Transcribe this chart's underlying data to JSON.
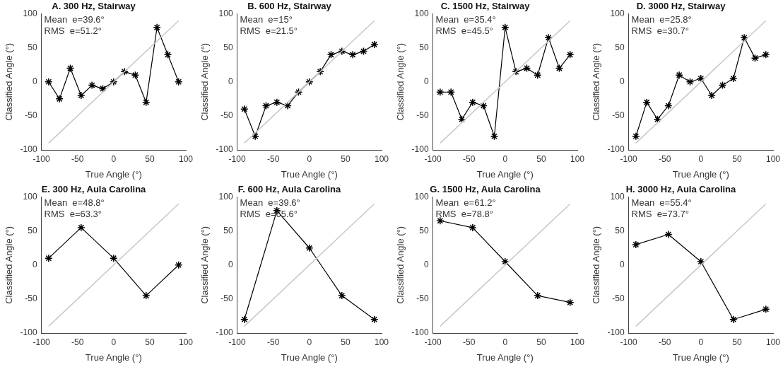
{
  "chart_data": [
    {
      "type": "line",
      "title": "A. 300 Hz, Stairway",
      "xlabel": "True Angle (°)",
      "ylabel": "Classified Angle (°)",
      "annotations": [
        "Mean  e=39.6°",
        "RMS  e=51.2°"
      ],
      "xlim": [
        -100,
        100
      ],
      "ylim": [
        -100,
        100
      ],
      "xticks": [
        -100,
        -50,
        0,
        50,
        100
      ],
      "yticks": [
        -100,
        -50,
        0,
        50,
        100
      ],
      "series": [
        {
          "x": [
            -90,
            90
          ],
          "values": [
            -90,
            90
          ],
          "color": "#c8c8c8",
          "marker": "none"
        },
        {
          "x": [
            -90,
            -75,
            -60,
            -45,
            -30,
            -15,
            0,
            15,
            30,
            45,
            60,
            75,
            90
          ],
          "values": [
            0,
            -25,
            20,
            -20,
            -5,
            -10,
            0,
            15,
            10,
            -30,
            80,
            40,
            0
          ],
          "color": "#000000",
          "marker": "cross"
        }
      ]
    },
    {
      "type": "line",
      "title": "B. 600 Hz, Stairway",
      "xlabel": "True Angle (°)",
      "ylabel": "Classified Angle (°)",
      "annotations": [
        "Mean  e=15°",
        "RMS  e=21.5°"
      ],
      "xlim": [
        -100,
        100
      ],
      "ylim": [
        -100,
        100
      ],
      "xticks": [
        -100,
        -50,
        0,
        50,
        100
      ],
      "yticks": [
        -100,
        -50,
        0,
        50,
        100
      ],
      "series": [
        {
          "x": [
            -90,
            90
          ],
          "values": [
            -90,
            90
          ],
          "color": "#c8c8c8",
          "marker": "none"
        },
        {
          "x": [
            -90,
            -75,
            -60,
            -45,
            -30,
            -15,
            0,
            15,
            30,
            45,
            60,
            75,
            90
          ],
          "values": [
            -40,
            -80,
            -35,
            -30,
            -35,
            -15,
            0,
            15,
            40,
            45,
            40,
            45,
            55
          ],
          "color": "#000000",
          "marker": "cross"
        }
      ]
    },
    {
      "type": "line",
      "title": "C. 1500 Hz, Stairway",
      "xlabel": "True Angle (°)",
      "ylabel": "Classified Angle (°)",
      "annotations": [
        "Mean  e=35.4°",
        "RMS  e=45.5°"
      ],
      "xlim": [
        -100,
        100
      ],
      "ylim": [
        -100,
        100
      ],
      "xticks": [
        -100,
        -50,
        0,
        50,
        100
      ],
      "yticks": [
        -100,
        -50,
        0,
        50,
        100
      ],
      "series": [
        {
          "x": [
            -90,
            90
          ],
          "values": [
            -90,
            90
          ],
          "color": "#c8c8c8",
          "marker": "none"
        },
        {
          "x": [
            -90,
            -75,
            -60,
            -45,
            -30,
            -15,
            0,
            15,
            30,
            45,
            60,
            75,
            90
          ],
          "values": [
            -15,
            -15,
            -55,
            -30,
            -35,
            -80,
            80,
            15,
            20,
            10,
            65,
            20,
            40
          ],
          "color": "#000000",
          "marker": "cross"
        }
      ]
    },
    {
      "type": "line",
      "title": "D. 3000 Hz, Stairway",
      "xlabel": "True Angle (°)",
      "ylabel": "Classified Angle (°)",
      "annotations": [
        "Mean  e=25.8°",
        "RMS  e=30.7°"
      ],
      "xlim": [
        -100,
        100
      ],
      "ylim": [
        -100,
        100
      ],
      "xticks": [
        -100,
        -50,
        0,
        50,
        100
      ],
      "yticks": [
        -100,
        -50,
        0,
        50,
        100
      ],
      "series": [
        {
          "x": [
            -90,
            90
          ],
          "values": [
            -90,
            90
          ],
          "color": "#c8c8c8",
          "marker": "none"
        },
        {
          "x": [
            -90,
            -75,
            -60,
            -45,
            -30,
            -15,
            0,
            15,
            30,
            45,
            60,
            75,
            90
          ],
          "values": [
            -80,
            -30,
            -55,
            -35,
            10,
            0,
            5,
            -20,
            -5,
            5,
            65,
            35,
            40
          ],
          "color": "#000000",
          "marker": "cross"
        }
      ]
    },
    {
      "type": "line",
      "title": "E. 300 Hz, Aula Carolina",
      "xlabel": "True Angle (°)",
      "ylabel": "Classified Angle (°)",
      "annotations": [
        "Mean  e=48.8°",
        "RMS  e=63.3°"
      ],
      "xlim": [
        -100,
        100
      ],
      "ylim": [
        -100,
        100
      ],
      "xticks": [
        -100,
        -50,
        0,
        50,
        100
      ],
      "yticks": [
        -100,
        -50,
        0,
        50,
        100
      ],
      "series": [
        {
          "x": [
            -90,
            90
          ],
          "values": [
            -90,
            90
          ],
          "color": "#c8c8c8",
          "marker": "none"
        },
        {
          "x": [
            -90,
            -45,
            0,
            45,
            90
          ],
          "values": [
            10,
            55,
            10,
            -45,
            0
          ],
          "color": "#000000",
          "marker": "cross"
        }
      ]
    },
    {
      "type": "line",
      "title": "F. 600 Hz, Aula Carolina",
      "xlabel": "True Angle (°)",
      "ylabel": "Classified Angle (°)",
      "annotations": [
        "Mean  e=39.6°",
        "RMS  e=65.6°"
      ],
      "xlim": [
        -100,
        100
      ],
      "ylim": [
        -100,
        100
      ],
      "xticks": [
        -100,
        -50,
        0,
        50,
        100
      ],
      "yticks": [
        -100,
        -50,
        0,
        50,
        100
      ],
      "series": [
        {
          "x": [
            -90,
            90
          ],
          "values": [
            -90,
            90
          ],
          "color": "#c8c8c8",
          "marker": "none"
        },
        {
          "x": [
            -90,
            -45,
            0,
            45,
            90
          ],
          "values": [
            -80,
            80,
            25,
            -45,
            -80
          ],
          "color": "#000000",
          "marker": "cross"
        }
      ]
    },
    {
      "type": "line",
      "title": "G. 1500 Hz, Aula Carolina",
      "xlabel": "True Angle (°)",
      "ylabel": "Classified Angle (°)",
      "annotations": [
        "Mean  e=61.2°",
        "RMS  e=78.8°"
      ],
      "xlim": [
        -100,
        100
      ],
      "ylim": [
        -100,
        100
      ],
      "xticks": [
        -100,
        -50,
        0,
        50,
        100
      ],
      "yticks": [
        -100,
        -50,
        0,
        50,
        100
      ],
      "series": [
        {
          "x": [
            -90,
            90
          ],
          "values": [
            -90,
            90
          ],
          "color": "#c8c8c8",
          "marker": "none"
        },
        {
          "x": [
            -90,
            -45,
            0,
            45,
            90
          ],
          "values": [
            65,
            55,
            5,
            -45,
            -55
          ],
          "color": "#000000",
          "marker": "cross"
        }
      ]
    },
    {
      "type": "line",
      "title": "H. 3000 Hz, Aula Carolina",
      "xlabel": "True Angle (°)",
      "ylabel": "Classified Angle (°)",
      "annotations": [
        "Mean  e=55.4°",
        "RMS  e=73.7°"
      ],
      "xlim": [
        -100,
        100
      ],
      "ylim": [
        -100,
        100
      ],
      "xticks": [
        -100,
        -50,
        0,
        50,
        100
      ],
      "yticks": [
        -100,
        -50,
        0,
        50,
        100
      ],
      "series": [
        {
          "x": [
            -90,
            90
          ],
          "values": [
            -90,
            90
          ],
          "color": "#c8c8c8",
          "marker": "none"
        },
        {
          "x": [
            -90,
            -45,
            0,
            45,
            90
          ],
          "values": [
            30,
            45,
            5,
            -80,
            -65
          ],
          "color": "#000000",
          "marker": "cross"
        }
      ]
    }
  ]
}
